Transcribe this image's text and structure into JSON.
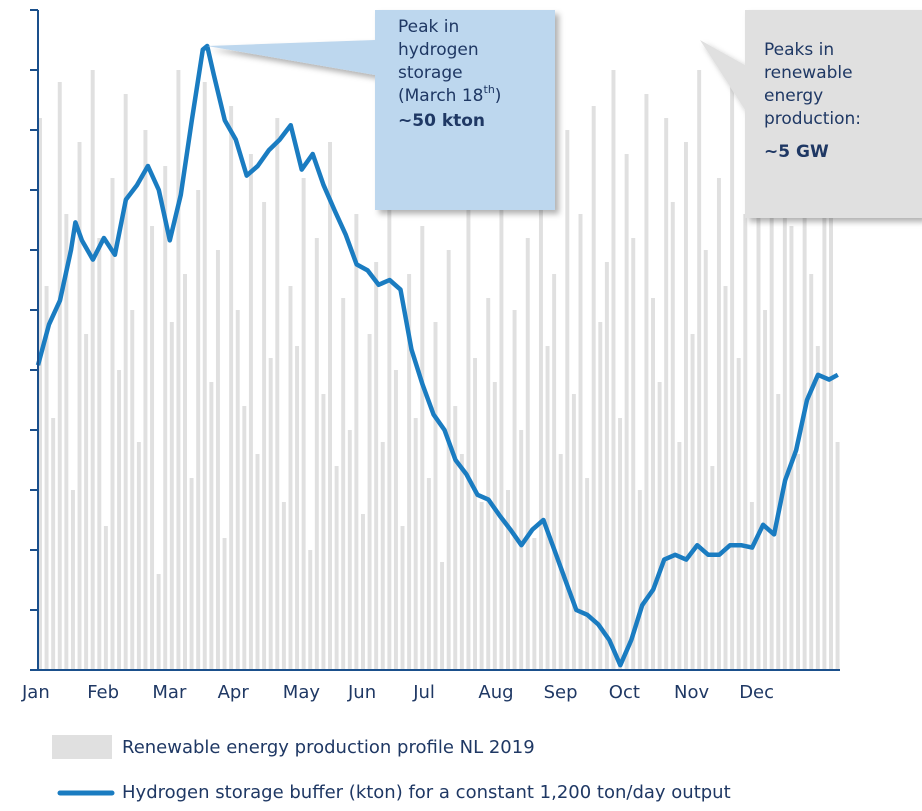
{
  "chart_data": {
    "type": "line",
    "categories": [
      "Jan",
      "Feb",
      "Mar",
      "Apr",
      "May",
      "Jun",
      "Jul",
      "Aug",
      "Sep",
      "Oct",
      "Nov",
      "Dec"
    ],
    "xlim": [
      0,
      365
    ],
    "ylim": [
      0,
      55
    ],
    "yticks": [
      0,
      5,
      10,
      15,
      20,
      25,
      30,
      35,
      40,
      45,
      50,
      55
    ],
    "y2lim": [
      0,
      5.5
    ],
    "series": [
      {
        "name": "Renewable energy production profile NL 2019",
        "type": "bar",
        "axis": "y2",
        "color": "#e0e0e0",
        "x": [
          0,
          3,
          6,
          9,
          12,
          15,
          18,
          21,
          24,
          27,
          30,
          33,
          36,
          39,
          42,
          45,
          48,
          51,
          54,
          57,
          60,
          63,
          66,
          69,
          72,
          75,
          78,
          81,
          84,
          87,
          90,
          93,
          96,
          99,
          102,
          105,
          108,
          111,
          114,
          117,
          120,
          123,
          126,
          129,
          132,
          135,
          138,
          141,
          144,
          147,
          150,
          153,
          156,
          159,
          162,
          165,
          168,
          171,
          174,
          177,
          180,
          183,
          186,
          189,
          192,
          195,
          198,
          201,
          204,
          207,
          210,
          213,
          216,
          219,
          222,
          225,
          228,
          231,
          234,
          237,
          240,
          243,
          246,
          249,
          252,
          255,
          258,
          261,
          264,
          267,
          270,
          273,
          276,
          279,
          282,
          285,
          288,
          291,
          294,
          297,
          300,
          303,
          306,
          309,
          312,
          315,
          318,
          321,
          324,
          327,
          330,
          333,
          336,
          339,
          342,
          345,
          348,
          351,
          354,
          357,
          360,
          363
        ],
        "values": [
          4.6,
          3.2,
          2.1,
          4.9,
          3.8,
          1.5,
          4.4,
          2.8,
          5.0,
          3.6,
          1.2,
          4.1,
          2.5,
          4.8,
          3.0,
          1.9,
          4.5,
          3.7,
          0.8,
          4.2,
          2.9,
          5.0,
          3.3,
          1.6,
          4.0,
          4.9,
          2.4,
          3.5,
          1.1,
          4.7,
          3.0,
          2.2,
          4.3,
          1.8,
          3.9,
          2.6,
          4.6,
          1.4,
          3.2,
          2.7,
          4.1,
          1.0,
          3.6,
          2.3,
          4.4,
          1.7,
          3.1,
          2.0,
          3.8,
          1.3,
          2.8,
          3.4,
          1.9,
          4.0,
          2.5,
          1.2,
          3.3,
          2.1,
          3.7,
          1.6,
          2.9,
          0.9,
          3.5,
          2.2,
          1.8,
          3.9,
          2.6,
          1.4,
          3.1,
          2.4,
          4.2,
          1.5,
          3.0,
          2.0,
          3.6,
          1.1,
          4.0,
          2.7,
          3.3,
          1.8,
          4.5,
          2.3,
          3.8,
          1.6,
          4.7,
          2.9,
          3.4,
          5.0,
          2.1,
          4.3,
          3.6,
          1.5,
          4.8,
          3.1,
          2.4,
          4.6,
          3.9,
          1.9,
          4.4,
          2.8,
          5.0,
          3.5,
          1.7,
          4.1,
          3.2,
          4.9,
          2.6,
          3.8,
          1.4,
          4.5,
          3.0,
          5.0,
          2.3,
          4.2,
          3.7,
          1.8,
          4.8,
          3.3,
          2.7,
          4.6,
          3.9,
          1.9
        ]
      },
      {
        "name": "Hydrogen storage buffer (kton) for a constant 1,200 ton/day output",
        "color": "#1a7cc1",
        "x": [
          0,
          5,
          10,
          15,
          17,
          20,
          25,
          30,
          35,
          40,
          45,
          50,
          55,
          60,
          65,
          70,
          75,
          77,
          80,
          85,
          90,
          95,
          100,
          105,
          110,
          115,
          120,
          125,
          130,
          135,
          140,
          145,
          150,
          155,
          160,
          165,
          170,
          175,
          180,
          185,
          190,
          195,
          200,
          205,
          210,
          215,
          220,
          225,
          230,
          235,
          240,
          245,
          250,
          255,
          260,
          265,
          270,
          275,
          280,
          285,
          290,
          295,
          300,
          305,
          310,
          315,
          320,
          325,
          330,
          335,
          340,
          345,
          350,
          355,
          360,
          364
        ],
        "values": [
          25.4,
          28.8,
          30.8,
          35,
          37.3,
          35.8,
          34.2,
          36,
          34.6,
          39.2,
          40.4,
          42,
          40,
          35.8,
          39.6,
          45.8,
          51.7,
          52,
          49.6,
          45.8,
          44.2,
          41.2,
          42,
          43.3,
          44.2,
          45.4,
          41.7,
          43,
          40.4,
          38.3,
          36.3,
          33.8,
          33.3,
          32.1,
          32.5,
          31.7,
          26.7,
          23.8,
          21.3,
          20,
          17.5,
          16.3,
          14.6,
          14.2,
          12.9,
          11.7,
          10.4,
          11.7,
          12.5,
          10,
          7.5,
          5,
          4.6,
          3.8,
          2.5,
          0.4,
          2.5,
          5.4,
          6.7,
          9.2,
          9.6,
          9.2,
          10.4,
          9.6,
          9.6,
          10.4,
          10.4,
          10.2,
          12.1,
          11.3,
          15.8,
          18.3,
          22.5,
          24.6,
          24.2,
          24.6
        ]
      }
    ],
    "annotations": [
      {
        "lines": [
          "Peak in",
          "hydrogen",
          "storage"
        ],
        "date": [
          "(March 18",
          "th",
          ")"
        ],
        "value": "~50 kton",
        "color": "#bdd7ee"
      },
      {
        "lines": [
          "Peaks in",
          "renewable",
          "energy",
          "production:"
        ],
        "value": "~5 GW",
        "color": "#e0e0e0"
      }
    ]
  }
}
